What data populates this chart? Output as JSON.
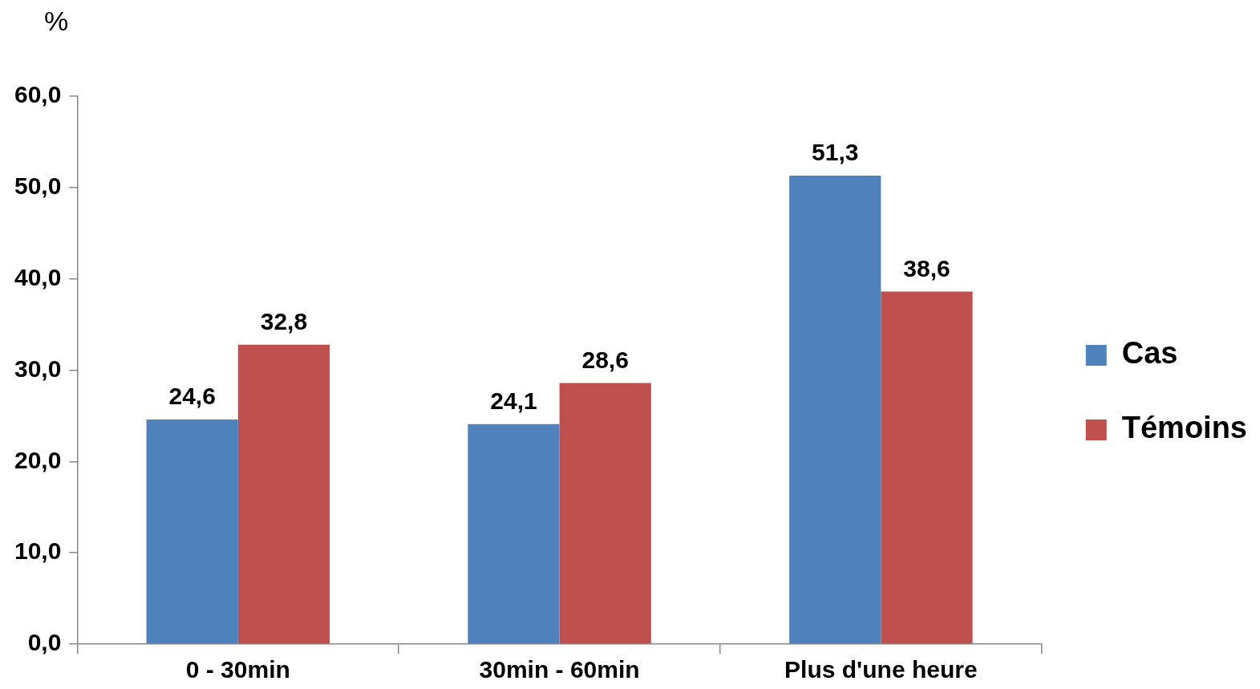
{
  "chart_data": {
    "type": "bar",
    "ylabel": "%",
    "categories": [
      "0 - 30min",
      "30min - 60min",
      "Plus d'une heure"
    ],
    "series": [
      {
        "name": "Cas",
        "color": "#4f81bd",
        "values": [
          24.6,
          24.1,
          51.3
        ],
        "value_labels": [
          "24,6",
          "24,1",
          "51,3"
        ]
      },
      {
        "name": "Témoins",
        "color": "#c0504d",
        "values": [
          32.8,
          28.6,
          38.6
        ],
        "value_labels": [
          "32,8",
          "28,6",
          "38,6"
        ]
      }
    ],
    "ylim": [
      0,
      60
    ],
    "yticks": [
      {
        "value": 0,
        "label": "0,0"
      },
      {
        "value": 10,
        "label": "10,0"
      },
      {
        "value": 20,
        "label": "20,0"
      },
      {
        "value": 30,
        "label": "30,0"
      },
      {
        "value": 40,
        "label": "40,0"
      },
      {
        "value": 50,
        "label": "50,0"
      },
      {
        "value": 60,
        "label": "60,0"
      }
    ],
    "grid": false,
    "legend": "right"
  }
}
